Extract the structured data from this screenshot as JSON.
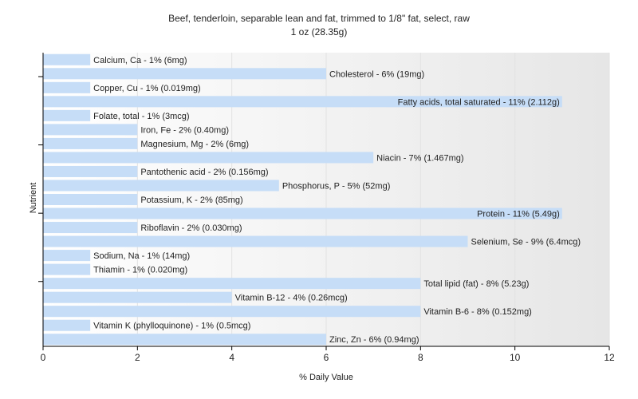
{
  "chart_data": {
    "type": "bar",
    "orientation": "horizontal",
    "title": "Beef, tenderloin, separable lean and fat, trimmed to 1/8\" fat, select, raw",
    "subtitle": "1 oz (28.35g)",
    "xlabel": "% Daily Value",
    "ylabel": "Nutrient",
    "xlim": [
      0,
      12
    ],
    "xticks": [
      "0",
      "2",
      "4",
      "6",
      "8",
      "10",
      "12"
    ],
    "grid": true,
    "bar_color": "#c6ddf7",
    "categories": [
      "Calcium, Ca",
      "Cholesterol",
      "Copper, Cu",
      "Fatty acids, total saturated",
      "Folate, total",
      "Iron, Fe",
      "Magnesium, Mg",
      "Niacin",
      "Pantothenic acid",
      "Phosphorus, P",
      "Potassium, K",
      "Protein",
      "Riboflavin",
      "Selenium, Se",
      "Sodium, Na",
      "Thiamin",
      "Total lipid (fat)",
      "Vitamin B-12",
      "Vitamin B-6",
      "Vitamin K (phylloquinone)",
      "Zinc, Zn"
    ],
    "values": [
      1,
      6,
      1,
      11,
      1,
      2,
      2,
      7,
      2,
      5,
      2,
      11,
      2,
      9,
      1,
      1,
      8,
      4,
      8,
      1,
      6
    ],
    "labels": [
      "Calcium, Ca - 1% (6mg)",
      "Cholesterol - 6% (19mg)",
      "Copper, Cu - 1% (0.019mg)",
      "Fatty acids, total saturated - 11% (2.112g)",
      "Folate, total - 1% (3mcg)",
      "Iron, Fe - 2% (0.40mg)",
      "Magnesium, Mg - 2% (6mg)",
      "Niacin - 7% (1.467mg)",
      "Pantothenic acid - 2% (0.156mg)",
      "Phosphorus, P - 5% (52mg)",
      "Potassium, K - 2% (85mg)",
      "Protein - 11% (5.49g)",
      "Riboflavin - 2% (0.030mg)",
      "Selenium, Se - 9% (6.4mcg)",
      "Sodium, Na - 1% (14mg)",
      "Thiamin - 1% (0.020mg)",
      "Total lipid (fat) - 8% (5.23g)",
      "Vitamin B-12 - 4% (0.26mcg)",
      "Vitamin B-6 - 8% (0.152mg)",
      "Vitamin K (phylloquinone) - 1% (0.5mcg)",
      "Zinc, Zn - 6% (0.94mg)"
    ]
  }
}
